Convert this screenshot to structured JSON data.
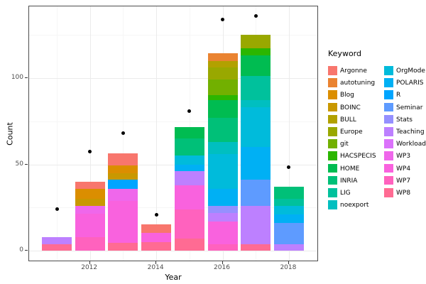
{
  "chart_data": {
    "type": "bar",
    "stacked": true,
    "title": "",
    "xlabel": "Year",
    "ylabel": "Count",
    "legend_title": "Keyword",
    "legend_position": "right",
    "grid": true,
    "x_years": [
      2011,
      2012,
      2013,
      2014,
      2015,
      2016,
      2017,
      2018
    ],
    "x_tick_years": [
      2012,
      2014,
      2016,
      2018
    ],
    "x_tick_labels": [
      "2012",
      "2014",
      "2016",
      "2018"
    ],
    "y_ticks": [
      0,
      50,
      100
    ],
    "y_tick_labels": [
      "0",
      "50",
      "100"
    ],
    "y_minor_ticks": [
      25,
      75,
      125
    ],
    "ylim": [
      -6.6,
      141.9
    ],
    "keywords": [
      {
        "name": "Argonne",
        "color": "#F8766D"
      },
      {
        "name": "autotuning",
        "color": "#EA8331"
      },
      {
        "name": "Blog",
        "color": "#DB8E00"
      },
      {
        "name": "BOINC",
        "color": "#C99800"
      },
      {
        "name": "BULL",
        "color": "#B2A100"
      },
      {
        "name": "Europe",
        "color": "#99A800"
      },
      {
        "name": "git",
        "color": "#72B000"
      },
      {
        "name": "HACSPECIS",
        "color": "#2BB600"
      },
      {
        "name": "HOME",
        "color": "#00BC51"
      },
      {
        "name": "INRIA",
        "color": "#00C078"
      },
      {
        "name": "LIG",
        "color": "#00C19C"
      },
      {
        "name": "noexport",
        "color": "#00BFC0"
      },
      {
        "name": "OrgMode",
        "color": "#00BBDB"
      },
      {
        "name": "POLARIS",
        "color": "#00B0F4"
      },
      {
        "name": "R",
        "color": "#00A5FF"
      },
      {
        "name": "Seminar",
        "color": "#5E9BFF"
      },
      {
        "name": "Stats",
        "color": "#9590FF"
      },
      {
        "name": "Teaching",
        "color": "#BD80FF"
      },
      {
        "name": "Workload",
        "color": "#DB72FB"
      },
      {
        "name": "WP3",
        "color": "#EF67EB"
      },
      {
        "name": "WP4",
        "color": "#F962DE"
      },
      {
        "name": "WP7",
        "color": "#FF62BE"
      },
      {
        "name": "WP8",
        "color": "#FF6B93"
      }
    ],
    "bars": [
      {
        "year": 2011,
        "total": 8,
        "segments": [
          {
            "keyword": "WP8",
            "value": 4
          },
          {
            "keyword": "Teaching",
            "value": 4
          }
        ]
      },
      {
        "year": 2012,
        "total": 40,
        "segments": [
          {
            "keyword": "WP7",
            "value": 8
          },
          {
            "keyword": "WP4",
            "value": 13.5
          },
          {
            "keyword": "WP3",
            "value": 4.5
          },
          {
            "keyword": "BOINC",
            "value": 4
          },
          {
            "keyword": "Blog",
            "value": 6
          },
          {
            "keyword": "Argonne",
            "value": 4
          }
        ]
      },
      {
        "year": 2013,
        "total": 56.5,
        "segments": [
          {
            "keyword": "WP8",
            "value": 4.5
          },
          {
            "keyword": "WP4",
            "value": 24.5
          },
          {
            "keyword": "WP3",
            "value": 7
          },
          {
            "keyword": "R",
            "value": 5
          },
          {
            "keyword": "BOINC",
            "value": 4
          },
          {
            "keyword": "Blog",
            "value": 4.5
          },
          {
            "keyword": "Argonne",
            "value": 7
          }
        ]
      },
      {
        "year": 2014,
        "total": 15.5,
        "segments": [
          {
            "keyword": "WP8",
            "value": 5
          },
          {
            "keyword": "WP4",
            "value": 5.5
          },
          {
            "keyword": "Argonne",
            "value": 5
          }
        ]
      },
      {
        "year": 2015,
        "total": 71.5,
        "segments": [
          {
            "keyword": "WP8",
            "value": 7
          },
          {
            "keyword": "WP7",
            "value": 17
          },
          {
            "keyword": "WP4",
            "value": 14
          },
          {
            "keyword": "Teaching",
            "value": 8
          },
          {
            "keyword": "POLARIS",
            "value": 4
          },
          {
            "keyword": "OrgMode",
            "value": 5
          },
          {
            "keyword": "INRIA",
            "value": 10
          },
          {
            "keyword": "HOME",
            "value": 6.5
          }
        ]
      },
      {
        "year": 2016,
        "total": 114.5,
        "segments": [
          {
            "keyword": "WP7",
            "value": 4
          },
          {
            "keyword": "WP4",
            "value": 13
          },
          {
            "keyword": "Teaching",
            "value": 5
          },
          {
            "keyword": "Stats",
            "value": 4
          },
          {
            "keyword": "POLARIS",
            "value": 10
          },
          {
            "keyword": "OrgMode",
            "value": 20
          },
          {
            "keyword": "noexport",
            "value": 7
          },
          {
            "keyword": "INRIA",
            "value": 14
          },
          {
            "keyword": "HOME",
            "value": 10
          },
          {
            "keyword": "HACSPECIS",
            "value": 3
          },
          {
            "keyword": "git",
            "value": 9
          },
          {
            "keyword": "Europe",
            "value": 7
          },
          {
            "keyword": "BULL",
            "value": 4
          },
          {
            "keyword": "autotuning",
            "value": 4.5
          }
        ]
      },
      {
        "year": 2017,
        "total": 125,
        "segments": [
          {
            "keyword": "WP8",
            "value": 4
          },
          {
            "keyword": "Teaching",
            "value": 22
          },
          {
            "keyword": "Seminar",
            "value": 15
          },
          {
            "keyword": "POLARIS",
            "value": 19
          },
          {
            "keyword": "OrgMode",
            "value": 23
          },
          {
            "keyword": "noexport",
            "value": 4
          },
          {
            "keyword": "LIG",
            "value": 14
          },
          {
            "keyword": "HOME",
            "value": 12
          },
          {
            "keyword": "HACSPECIS",
            "value": 4
          },
          {
            "keyword": "Europe",
            "value": 8
          }
        ]
      },
      {
        "year": 2018,
        "total": 37,
        "segments": [
          {
            "keyword": "Teaching",
            "value": 4
          },
          {
            "keyword": "Seminar",
            "value": 12
          },
          {
            "keyword": "POLARIS",
            "value": 5
          },
          {
            "keyword": "OrgMode",
            "value": 5
          },
          {
            "keyword": "LIG",
            "value": 4
          },
          {
            "keyword": "INRIA",
            "value": 7
          }
        ]
      }
    ],
    "points": [
      {
        "year": 2011,
        "value": 24
      },
      {
        "year": 2012,
        "value": 57.5
      },
      {
        "year": 2013,
        "value": 68
      },
      {
        "year": 2014,
        "value": 21
      },
      {
        "year": 2015,
        "value": 81
      },
      {
        "year": 2016,
        "value": 134
      },
      {
        "year": 2017,
        "value": 136
      },
      {
        "year": 2018,
        "value": 48.5
      }
    ],
    "colors": {
      "panel_background": "#FFFFFF",
      "panel_border": "#4D4D4D",
      "grid_major": "#EBEBEB",
      "grid_minor": "#F6F6F6",
      "tick_label": "#4D4D4D",
      "point": "#000000"
    }
  }
}
